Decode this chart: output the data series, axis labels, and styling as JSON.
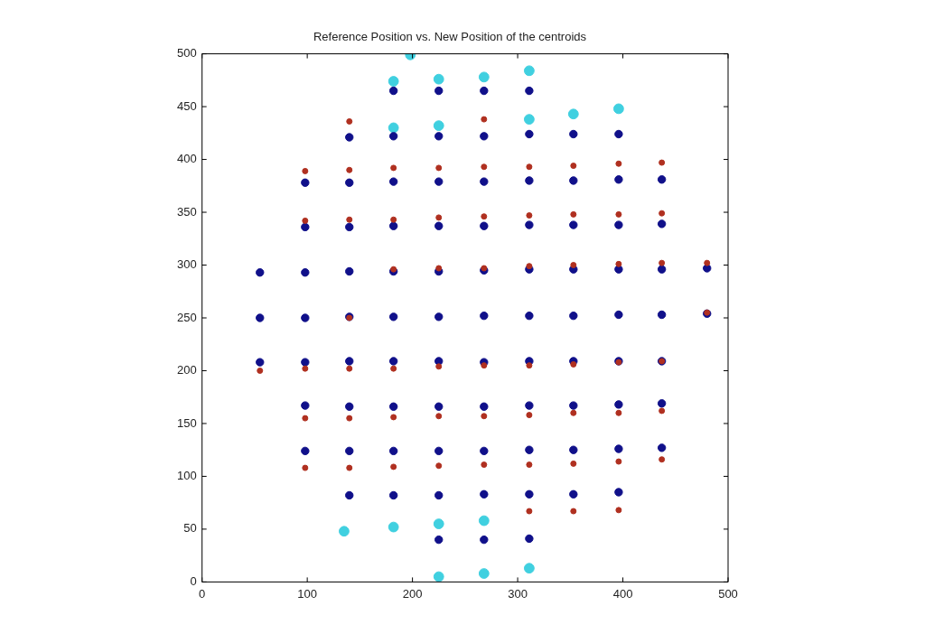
{
  "chart_data": {
    "type": "scatter",
    "title": "Reference Position vs. New Position of the centroids",
    "xlim": [
      0,
      500
    ],
    "xticks": [
      0,
      100,
      200,
      300,
      400,
      500
    ],
    "ylim": [
      0,
      500
    ],
    "yticks": [
      0,
      50,
      100,
      150,
      200,
      250,
      300,
      350,
      400,
      450,
      500
    ],
    "grid": false,
    "legend": false,
    "marker": "circle",
    "series": [
      {
        "color": "#b03020",
        "x": [
          55,
          98,
          98,
          98,
          98,
          98,
          140,
          140,
          140,
          140,
          140,
          140,
          140,
          182,
          182,
          182,
          182,
          182,
          182,
          225,
          225,
          225,
          225,
          225,
          225,
          268,
          268,
          268,
          268,
          268,
          268,
          268,
          311,
          311,
          311,
          311,
          311,
          311,
          311,
          353,
          353,
          353,
          353,
          353,
          353,
          353,
          396,
          396,
          396,
          396,
          396,
          396,
          396,
          437,
          437,
          437,
          437,
          437,
          437,
          480,
          480
        ],
        "values": [
          200,
          389,
          342,
          202,
          155,
          108,
          436,
          390,
          343,
          250,
          202,
          155,
          108,
          392,
          343,
          296,
          202,
          156,
          109,
          392,
          345,
          297,
          204,
          157,
          110,
          438,
          393,
          346,
          297,
          205,
          157,
          111,
          393,
          347,
          299,
          205,
          158,
          111,
          67,
          394,
          348,
          300,
          206,
          160,
          112,
          67,
          396,
          348,
          301,
          208,
          160,
          114,
          68,
          397,
          349,
          302,
          209,
          162,
          116,
          302,
          255
        ]
      },
      {
        "color": "#10108a",
        "x": [
          55,
          55,
          55,
          98,
          98,
          98,
          98,
          98,
          98,
          98,
          140,
          140,
          140,
          140,
          140,
          140,
          140,
          140,
          140,
          182,
          182,
          182,
          182,
          182,
          182,
          182,
          182,
          182,
          182,
          225,
          225,
          225,
          225,
          225,
          225,
          225,
          225,
          225,
          225,
          225,
          268,
          268,
          268,
          268,
          268,
          268,
          268,
          268,
          268,
          268,
          268,
          311,
          311,
          311,
          311,
          311,
          311,
          311,
          311,
          311,
          311,
          311,
          353,
          353,
          353,
          353,
          353,
          353,
          353,
          353,
          353,
          396,
          396,
          396,
          396,
          396,
          396,
          396,
          396,
          396,
          437,
          437,
          437,
          437,
          437,
          437,
          437,
          480,
          480
        ],
        "values": [
          293,
          250,
          208,
          378,
          336,
          293,
          250,
          208,
          167,
          124,
          421,
          378,
          336,
          294,
          251,
          209,
          166,
          124,
          82,
          465,
          422,
          379,
          337,
          294,
          251,
          209,
          166,
          124,
          82,
          465,
          422,
          379,
          337,
          294,
          251,
          209,
          166,
          124,
          82,
          40,
          465,
          422,
          379,
          337,
          295,
          252,
          208,
          166,
          124,
          83,
          40,
          465,
          424,
          380,
          338,
          296,
          252,
          209,
          167,
          125,
          83,
          41,
          424,
          380,
          338,
          296,
          252,
          209,
          167,
          125,
          83,
          424,
          381,
          338,
          296,
          253,
          209,
          168,
          126,
          85,
          381,
          339,
          296,
          253,
          209,
          169,
          127,
          297,
          254
        ]
      },
      {
        "color": "#40d0e0",
        "x": [
          135,
          182,
          182,
          182,
          198,
          225,
          225,
          225,
          225,
          268,
          268,
          268,
          311,
          311,
          311,
          353,
          396
        ],
        "values": [
          48,
          474,
          430,
          52,
          499,
          476,
          432,
          55,
          5,
          478,
          58,
          8,
          484,
          438,
          13,
          443,
          448
        ]
      }
    ]
  }
}
